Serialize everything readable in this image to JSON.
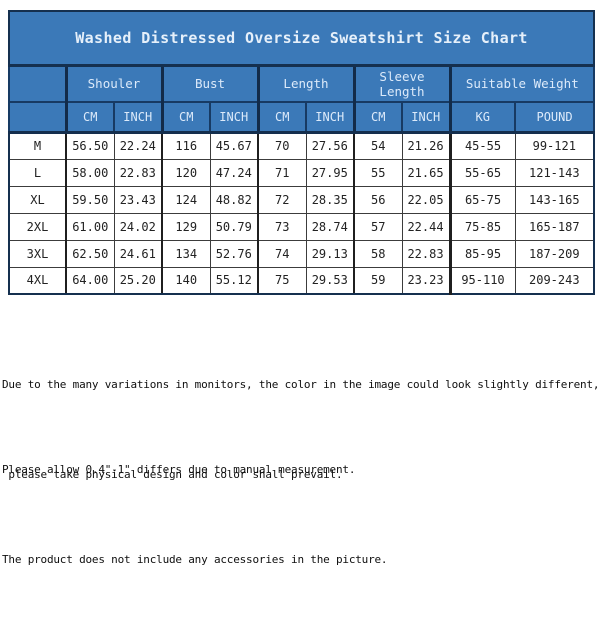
{
  "title": "Washed Distressed Oversize Sweatshirt Size Chart",
  "colors": {
    "header_blue": "#3b79b8",
    "header_border_navy": "#173a63",
    "header_text": "#dceafa",
    "data_text": "#222222",
    "background": "#ffffff"
  },
  "table": {
    "groups": [
      {
        "label": "Shouler"
      },
      {
        "label": "Bust"
      },
      {
        "label": "Length"
      },
      {
        "label": "Sleeve Length"
      },
      {
        "label": "Suitable Weight"
      }
    ],
    "subheaders": [
      "CM",
      "INCH",
      "CM",
      "INCH",
      "CM",
      "INCH",
      "CM",
      "INCH",
      "KG",
      "POUND"
    ],
    "rows": [
      {
        "size": "M",
        "values": [
          "56.50",
          "22.24",
          "116",
          "45.67",
          "70",
          "27.56",
          "54",
          "21.26",
          "45-55",
          "99-121"
        ]
      },
      {
        "size": "L",
        "values": [
          "58.00",
          "22.83",
          "120",
          "47.24",
          "71",
          "27.95",
          "55",
          "21.65",
          "55-65",
          "121-143"
        ]
      },
      {
        "size": "XL",
        "values": [
          "59.50",
          "23.43",
          "124",
          "48.82",
          "72",
          "28.35",
          "56",
          "22.05",
          "65-75",
          "143-165"
        ]
      },
      {
        "size": "2XL",
        "values": [
          "61.00",
          "24.02",
          "129",
          "50.79",
          "73",
          "28.74",
          "57",
          "22.44",
          "75-85",
          "165-187"
        ]
      },
      {
        "size": "3XL",
        "values": [
          "62.50",
          "24.61",
          "134",
          "52.76",
          "74",
          "29.13",
          "58",
          "22.83",
          "85-95",
          "187-209"
        ]
      },
      {
        "size": "4XL",
        "values": [
          "64.00",
          "25.20",
          "140",
          "55.12",
          "75",
          "29.53",
          "59",
          "23.23",
          "95-110",
          "209-243"
        ]
      }
    ]
  },
  "notes": {
    "monitor_line1": "Due to the many variations in monitors, the color in the image could look slightly different,",
    "monitor_line2": " please take physical design and color shall prevail.",
    "measurement": "Please allow 0.4\"-1\" differs due to manual measurement.",
    "accessories": "The product does not include any accessories in the picture."
  }
}
